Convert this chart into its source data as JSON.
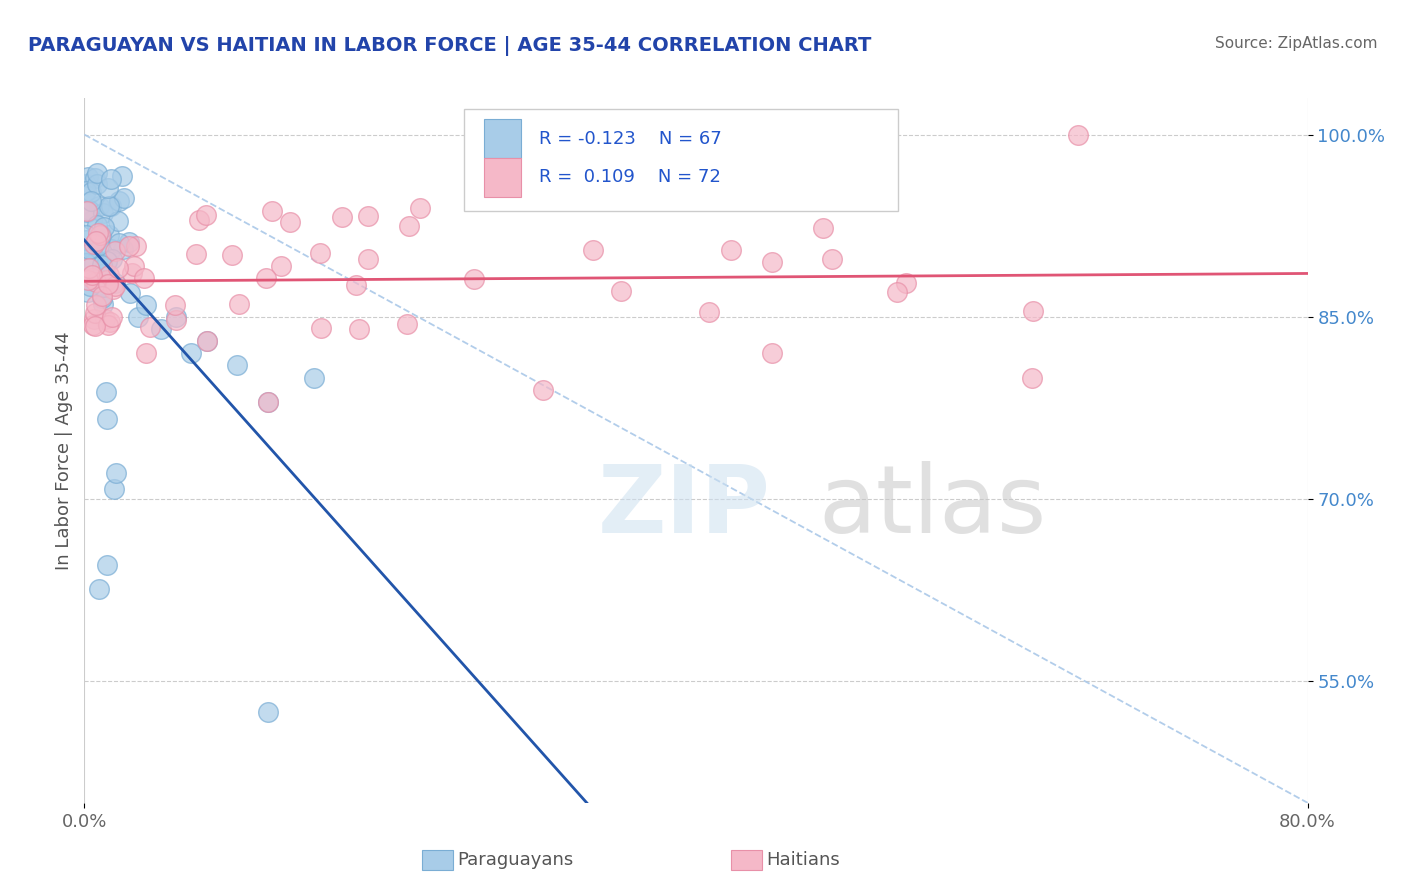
{
  "title": "PARAGUAYAN VS HAITIAN IN LABOR FORCE | AGE 35-44 CORRELATION CHART",
  "source": "Source: ZipAtlas.com",
  "ylabel": "In Labor Force | Age 35-44",
  "xlim": [
    0.0,
    0.8
  ],
  "ylim": [
    0.45,
    1.03
  ],
  "x_tick_vals": [
    0.0,
    0.8
  ],
  "x_tick_labels": [
    "0.0%",
    "80.0%"
  ],
  "y_tick_vals": [
    0.55,
    0.7,
    0.85,
    1.0
  ],
  "y_tick_labels": [
    "55.0%",
    "70.0%",
    "85.0%",
    "100.0%"
  ],
  "blue_fill": "#a8cce8",
  "blue_edge": "#7aadd4",
  "pink_fill": "#f5b8c8",
  "pink_edge": "#e890a8",
  "blue_line_color": "#2255aa",
  "pink_line_color": "#e05575",
  "dashed_color": "#aac8e8",
  "title_color": "#2244aa",
  "source_color": "#666666",
  "legend_text_color": "#2255cc",
  "grid_color": "#cccccc",
  "ylabel_color": "#555555",
  "xtick_color": "#666666",
  "ytick_color": "#4488cc"
}
